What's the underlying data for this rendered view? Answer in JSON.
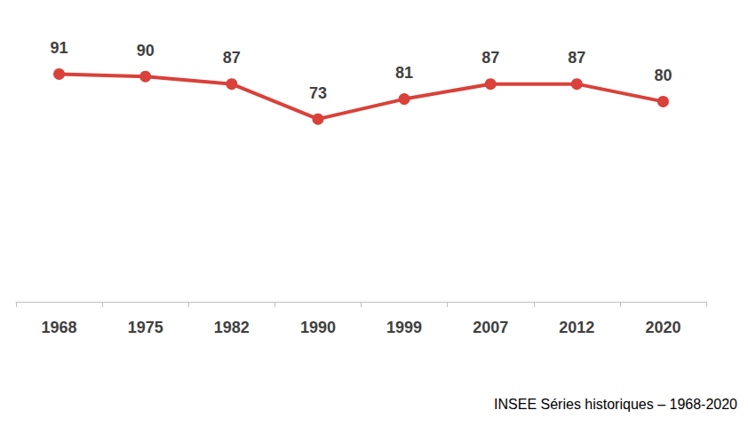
{
  "chart_data": {
    "type": "line",
    "categories": [
      "1968",
      "1975",
      "1982",
      "1990",
      "1999",
      "2007",
      "2012",
      "2020"
    ],
    "values": [
      91,
      90,
      87,
      73,
      81,
      87,
      87,
      80
    ],
    "color": "#d9413a",
    "marker": "circle",
    "line_style": "solid",
    "data_labels": true,
    "tick_labels": "x",
    "grid": false,
    "ylim": [
      0,
      100
    ],
    "yticks": [
      0,
      100
    ],
    "source": "INSEE Séries historiques – 1968-2020"
  }
}
